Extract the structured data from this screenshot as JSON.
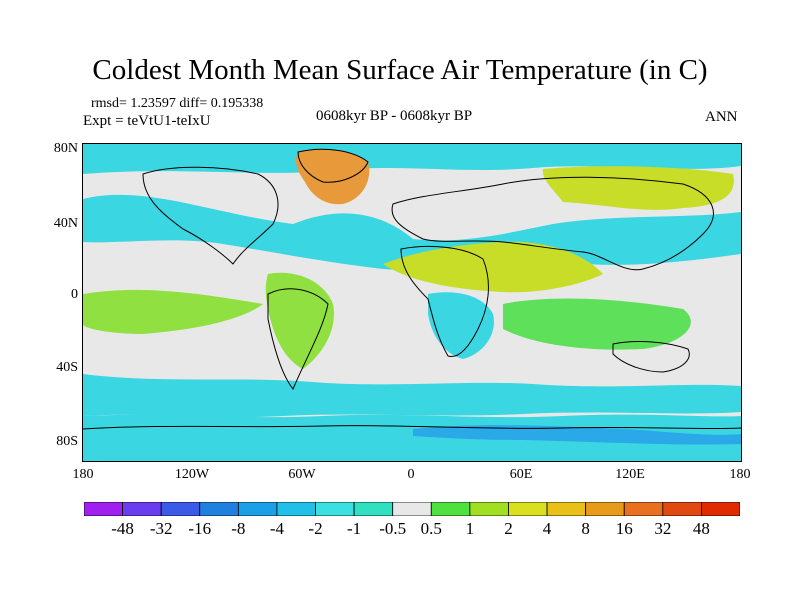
{
  "title": "Coldest Month Mean Surface Air Temperature (in C)",
  "stats": "rmsd= 1.23597 diff= 0.195338",
  "experiment": "Expt = teVtU1-teIxU",
  "period": "0608kyr BP - 0608kyr BP",
  "season": "ANN",
  "lat_labels": [
    "80N",
    "40N",
    "0",
    "40S",
    "80S"
  ],
  "lon_labels": [
    "180",
    "120W",
    "60W",
    "0",
    "60E",
    "120E",
    "180"
  ],
  "colorbar": {
    "labels": [
      "-48",
      "-32",
      "-16",
      "-8",
      "-4",
      "-2",
      "-1",
      "-0.5",
      "0.5",
      "1",
      "2",
      "4",
      "8",
      "16",
      "32",
      "48"
    ],
    "colors": [
      "#a020f0",
      "#6a3df0",
      "#3c5ae8",
      "#2080e0",
      "#1aa0e6",
      "#20c0e8",
      "#3de0e0",
      "#30e0c0",
      "#e8e8e8",
      "#50e040",
      "#a0e020",
      "#d8e020",
      "#e8c018",
      "#e89a1a",
      "#e87020",
      "#e04a10",
      "#e02a00"
    ]
  },
  "palette": {
    "background": "#e8e8e8",
    "cyan": "#3ad6e2",
    "green": "#8fe040",
    "yellow_green": "#c7dd28",
    "orange": "#e89a3a",
    "blue": "#2aa8e8",
    "light_green": "#5ee05a",
    "coast": "#000000"
  }
}
